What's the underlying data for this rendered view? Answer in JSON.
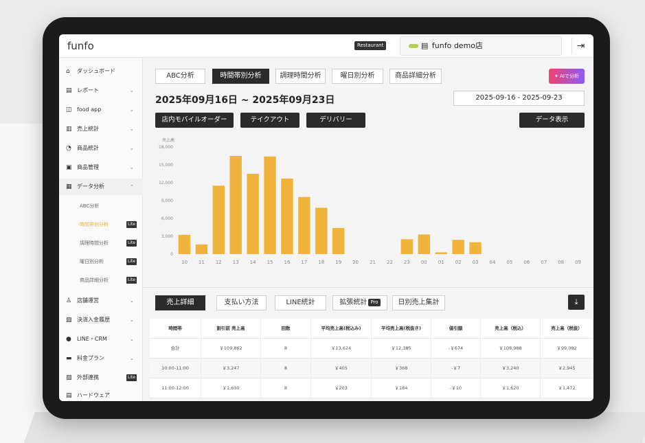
{
  "topbar": {
    "logo": "funfo",
    "badge": "Restaurant",
    "store_name": "funfo demo店",
    "store_icon": "store-icon",
    "logout_icon": "logout-icon"
  },
  "sidebar": {
    "items": [
      {
        "label": "ダッシュボード",
        "icon": "⌂",
        "chev": ""
      },
      {
        "label": "レポート",
        "icon": "▤",
        "chev": "⌄"
      },
      {
        "label": "food app",
        "icon": "◫",
        "chev": "⌄"
      },
      {
        "label": "売上統計",
        "icon": "▥",
        "chev": "⌄"
      },
      {
        "label": "商品統計",
        "icon": "◔",
        "chev": "⌄"
      },
      {
        "label": "商品管理",
        "icon": "▣",
        "chev": "⌄"
      },
      {
        "label": "データ分析",
        "icon": "▦",
        "chev": "⌃"
      }
    ],
    "subitems": [
      {
        "label": "ABC分析",
        "lite": ""
      },
      {
        "label": "時間帯別分析",
        "lite": "Lite"
      },
      {
        "label": "調理時間分析",
        "lite": "Lite"
      },
      {
        "label": "曜日別分析",
        "lite": "Lite"
      },
      {
        "label": "商品詳細分析",
        "lite": "Lite"
      }
    ],
    "items2": [
      {
        "label": "店舗運営",
        "icon": "♙",
        "chev": "⌄",
        "lite": ""
      },
      {
        "label": "決済入金履歴",
        "icon": "▨",
        "chev": "⌄",
        "lite": ""
      },
      {
        "label": "LINE・CRM",
        "icon": "●",
        "chev": "⌄",
        "lite": ""
      },
      {
        "label": "料金プラン",
        "icon": "▬",
        "chev": "⌄",
        "lite": ""
      },
      {
        "label": "外部連携",
        "icon": "▧",
        "chev": "",
        "lite": "Lite"
      },
      {
        "label": "ハードウェア",
        "icon": "▤",
        "chev": "",
        "lite": ""
      }
    ]
  },
  "tabs": [
    "ABC分析",
    "時間帯別分析",
    "調理時間分析",
    "曜日別分析",
    "商品詳細分析"
  ],
  "ai_button": "AIで分析",
  "range_title": "2025年09月16日 ~ 2025年09月23日",
  "date_range": "2025-09-16  -  2025-09-23",
  "channels": [
    "店内モバイルオーダー",
    "テイクアウト",
    "デリバリー"
  ],
  "data_button": "データ表示",
  "chart_data": {
    "type": "bar",
    "ylabel": "売上高",
    "ylim": [
      0,
      18000
    ],
    "yticks": [
      "0",
      "3,000",
      "6,000",
      "9,000",
      "12,000",
      "15,000",
      "18,000"
    ],
    "categories": [
      "10",
      "11",
      "12",
      "13",
      "14",
      "15",
      "16",
      "17",
      "18",
      "19",
      "20",
      "21",
      "22",
      "23",
      "00",
      "01",
      "02",
      "03",
      "04",
      "05",
      "06",
      "07",
      "08",
      "09"
    ],
    "values": [
      3247,
      1630,
      11500,
      16500,
      13500,
      16400,
      12700,
      9600,
      7800,
      4400,
      0,
      0,
      0,
      2500,
      3300,
      300,
      2400,
      2000,
      0,
      0,
      0,
      0,
      0,
      0
    ],
    "color": "#f0b43c"
  },
  "bottom_tabs": [
    "売上詳細",
    "支払い方法",
    "LINE統計",
    "拡張統計",
    "日別売上集計"
  ],
  "pro_badge": "Pro",
  "download_icon": "download-icon",
  "table": {
    "headers": [
      "時間帯",
      "割引前 売上高",
      "回数",
      "平均売上高(税込み)",
      "平均売上高(税抜き)",
      "値引額",
      "売上高（税込）",
      "売上高（税抜）"
    ],
    "rows": [
      [
        "合計",
        "￥109,862",
        "8",
        "￥13,624",
        "￥12,385",
        "-￥674",
        "￥108,988",
        "￥99,082"
      ],
      [
        "10:00-11:00",
        "￥3,247",
        "8",
        "￥405",
        "￥368",
        "-￥7",
        "￥3,240",
        "￥2,945"
      ],
      [
        "11:00-12:00",
        "￥1,630",
        "8",
        "￥203",
        "￥184",
        "-￥10",
        "￥1,620",
        "￥1,472"
      ]
    ]
  }
}
